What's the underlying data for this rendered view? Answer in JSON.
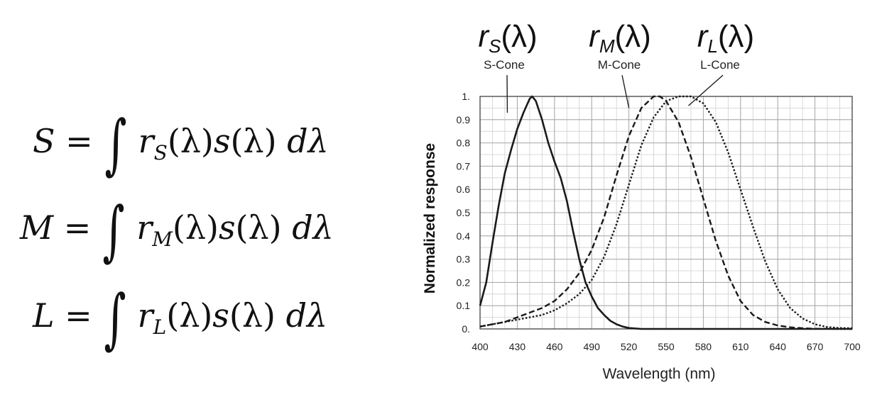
{
  "equations": [
    {
      "lhs": "S",
      "sub": "S"
    },
    {
      "lhs": "M",
      "sub": "M"
    },
    {
      "lhs": "L",
      "sub": "L"
    }
  ],
  "equation_parts": {
    "eq": "=",
    "int": "∫",
    "r": "r",
    "lam_paren": "(λ)",
    "s": "s",
    "d_lambda": "dλ"
  },
  "chart_data": {
    "type": "line",
    "xlabel": "Wavelength (nm)",
    "ylabel": "Normalized response",
    "xlim": [
      400,
      700
    ],
    "ylim": [
      0,
      1
    ],
    "x_ticks": [
      400,
      430,
      460,
      490,
      520,
      550,
      580,
      610,
      640,
      670,
      700
    ],
    "y_ticks": [
      {
        "v": 0,
        "label": "0."
      },
      {
        "v": 0.1,
        "label": "0.1"
      },
      {
        "v": 0.2,
        "label": "0.2"
      },
      {
        "v": 0.3,
        "label": "0.3"
      },
      {
        "v": 0.4,
        "label": "0.4"
      },
      {
        "v": 0.5,
        "label": "0.5"
      },
      {
        "v": 0.6,
        "label": "0.6"
      },
      {
        "v": 0.7,
        "label": "0.7"
      },
      {
        "v": 0.8,
        "label": "0.8"
      },
      {
        "v": 0.9,
        "label": "0.9"
      },
      {
        "v": 1,
        "label": "1."
      }
    ],
    "grid": true,
    "series": [
      {
        "name": "S-Cone",
        "math": "r_S(λ)",
        "style": "solid",
        "points": [
          [
            400,
            0.1
          ],
          [
            405,
            0.2
          ],
          [
            410,
            0.37
          ],
          [
            415,
            0.53
          ],
          [
            420,
            0.67
          ],
          [
            425,
            0.77
          ],
          [
            430,
            0.86
          ],
          [
            435,
            0.93
          ],
          [
            440,
            0.99
          ],
          [
            442,
            1.0
          ],
          [
            445,
            0.98
          ],
          [
            450,
            0.9
          ],
          [
            455,
            0.8
          ],
          [
            460,
            0.72
          ],
          [
            465,
            0.65
          ],
          [
            470,
            0.55
          ],
          [
            475,
            0.42
          ],
          [
            480,
            0.3
          ],
          [
            485,
            0.2
          ],
          [
            490,
            0.14
          ],
          [
            495,
            0.09
          ],
          [
            500,
            0.06
          ],
          [
            505,
            0.035
          ],
          [
            510,
            0.02
          ],
          [
            515,
            0.01
          ],
          [
            520,
            0.004
          ],
          [
            530,
            0.0
          ],
          [
            560,
            0.0
          ],
          [
            600,
            0.0
          ],
          [
            650,
            0.0
          ],
          [
            700,
            0.0
          ]
        ]
      },
      {
        "name": "M-Cone",
        "math": "r_M(λ)",
        "style": "dashed",
        "points": [
          [
            400,
            0.01
          ],
          [
            410,
            0.02
          ],
          [
            420,
            0.03
          ],
          [
            430,
            0.05
          ],
          [
            440,
            0.07
          ],
          [
            450,
            0.09
          ],
          [
            460,
            0.12
          ],
          [
            470,
            0.17
          ],
          [
            480,
            0.24
          ],
          [
            490,
            0.34
          ],
          [
            500,
            0.48
          ],
          [
            510,
            0.66
          ],
          [
            520,
            0.83
          ],
          [
            530,
            0.95
          ],
          [
            540,
            1.0
          ],
          [
            545,
            1.0
          ],
          [
            550,
            0.98
          ],
          [
            560,
            0.89
          ],
          [
            570,
            0.74
          ],
          [
            580,
            0.56
          ],
          [
            590,
            0.38
          ],
          [
            600,
            0.23
          ],
          [
            610,
            0.12
          ],
          [
            620,
            0.06
          ],
          [
            630,
            0.03
          ],
          [
            640,
            0.015
          ],
          [
            650,
            0.007
          ],
          [
            660,
            0.003
          ],
          [
            670,
            0.001
          ],
          [
            700,
            0.0
          ]
        ]
      },
      {
        "name": "L-Cone",
        "math": "r_L(λ)",
        "style": "dotted",
        "points": [
          [
            400,
            0.01
          ],
          [
            410,
            0.02
          ],
          [
            420,
            0.03
          ],
          [
            430,
            0.04
          ],
          [
            440,
            0.05
          ],
          [
            450,
            0.06
          ],
          [
            460,
            0.08
          ],
          [
            470,
            0.11
          ],
          [
            480,
            0.15
          ],
          [
            490,
            0.21
          ],
          [
            500,
            0.31
          ],
          [
            510,
            0.45
          ],
          [
            520,
            0.62
          ],
          [
            530,
            0.79
          ],
          [
            540,
            0.91
          ],
          [
            550,
            0.98
          ],
          [
            560,
            1.0
          ],
          [
            570,
            1.0
          ],
          [
            580,
            0.97
          ],
          [
            590,
            0.89
          ],
          [
            600,
            0.76
          ],
          [
            610,
            0.6
          ],
          [
            620,
            0.44
          ],
          [
            630,
            0.29
          ],
          [
            640,
            0.17
          ],
          [
            650,
            0.09
          ],
          [
            660,
            0.045
          ],
          [
            670,
            0.02
          ],
          [
            680,
            0.008
          ],
          [
            690,
            0.004
          ],
          [
            700,
            0.003
          ]
        ]
      }
    ]
  }
}
